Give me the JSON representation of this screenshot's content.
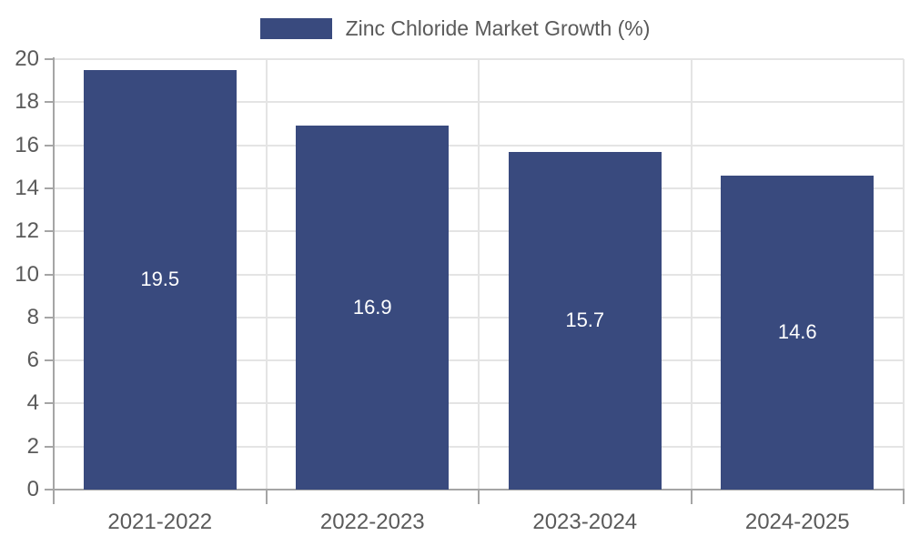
{
  "legend": {
    "label": "Zinc Chloride Market Growth (%)"
  },
  "chart_data": {
    "type": "bar",
    "title": "Zinc Chloride Market Growth (%)",
    "categories": [
      "2021-2022",
      "2022-2023",
      "2023-2024",
      "2024-2025"
    ],
    "values": [
      19.5,
      16.9,
      15.7,
      14.6
    ],
    "value_labels": [
      "19.5",
      "16.9",
      "15.7",
      "14.6"
    ],
    "xlabel": "",
    "ylabel": "",
    "ylim": [
      0,
      20
    ],
    "ytick_step": 2,
    "grid": true,
    "legend_position": "top-center",
    "colors": {
      "bar": "#394a7e",
      "grid": "#e4e4e4",
      "axis": "#a5a5a5",
      "tick_label": "#5a5a5a",
      "value_label": "#ffffff",
      "background": "#ffffff"
    }
  }
}
